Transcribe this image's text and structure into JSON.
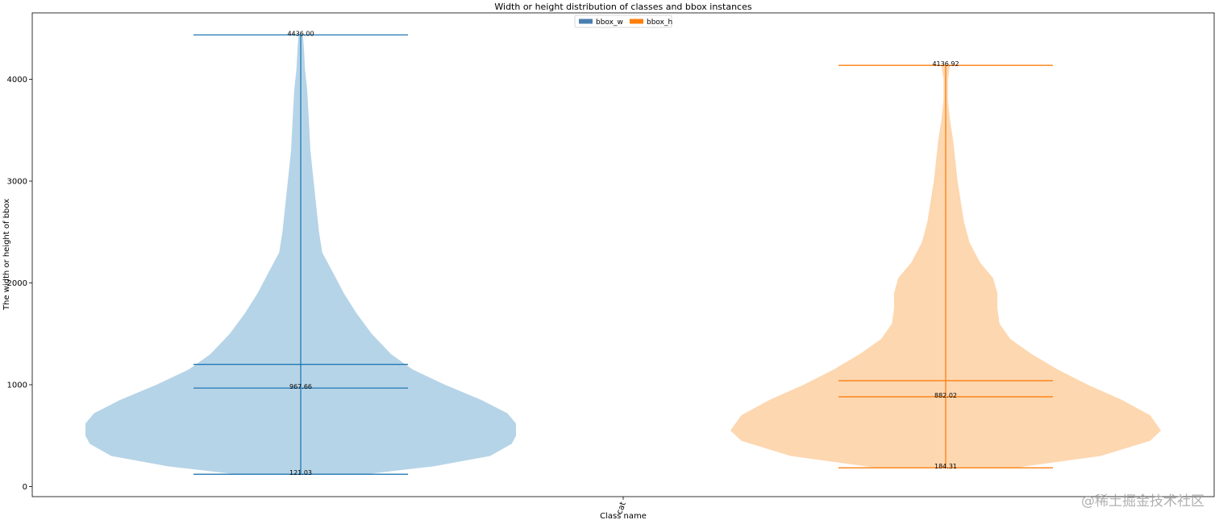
{
  "chart_data": {
    "type": "violin",
    "title": "Width or height distribution of classes and bbox instances",
    "xlabel": "Class name",
    "ylabel": "The width or height of bbox",
    "categories": [
      "cat"
    ],
    "ylim": [
      -100,
      4680
    ],
    "yticks": [
      0,
      1000,
      2000,
      3000,
      4000
    ],
    "grid": false,
    "legend_position": "top-center",
    "series": [
      {
        "name": "bbox_w",
        "color": "#1f77b4",
        "fill_color": "#a9cce3",
        "min": 121.03,
        "median": 967.66,
        "mean": 1200,
        "max": 4436.0,
        "min_label": "121.03",
        "median_label": "967.66",
        "max_label": "4436.00",
        "profile": [
          [
            121,
            0.3
          ],
          [
            200,
            0.62
          ],
          [
            300,
            0.88
          ],
          [
            420,
            0.98
          ],
          [
            500,
            1.0
          ],
          [
            620,
            1.0
          ],
          [
            720,
            0.96
          ],
          [
            850,
            0.84
          ],
          [
            1000,
            0.67
          ],
          [
            1150,
            0.52
          ],
          [
            1300,
            0.42
          ],
          [
            1500,
            0.33
          ],
          [
            1700,
            0.26
          ],
          [
            1900,
            0.2
          ],
          [
            2100,
            0.15
          ],
          [
            2300,
            0.1
          ],
          [
            2500,
            0.085
          ],
          [
            2700,
            0.075
          ],
          [
            3000,
            0.06
          ],
          [
            3300,
            0.045
          ],
          [
            3600,
            0.038
          ],
          [
            3900,
            0.03
          ],
          [
            4100,
            0.02
          ],
          [
            4300,
            0.015
          ],
          [
            4436,
            0.01
          ]
        ]
      },
      {
        "name": "bbox_h",
        "color": "#ff7f0e",
        "fill_color": "#fdd0a2",
        "min": 184.31,
        "median": 882.02,
        "mean": 1040,
        "max": 4136.92,
        "min_label": "184.31",
        "median_label": "882.02",
        "max_label": "4136.92",
        "profile": [
          [
            184,
            0.32
          ],
          [
            300,
            0.72
          ],
          [
            450,
            0.95
          ],
          [
            550,
            1.0
          ],
          [
            700,
            0.95
          ],
          [
            850,
            0.82
          ],
          [
            1000,
            0.66
          ],
          [
            1150,
            0.52
          ],
          [
            1300,
            0.4
          ],
          [
            1450,
            0.3
          ],
          [
            1600,
            0.25
          ],
          [
            1750,
            0.24
          ],
          [
            1900,
            0.24
          ],
          [
            2050,
            0.22
          ],
          [
            2200,
            0.16
          ],
          [
            2400,
            0.11
          ],
          [
            2600,
            0.085
          ],
          [
            2800,
            0.07
          ],
          [
            3000,
            0.055
          ],
          [
            3200,
            0.045
          ],
          [
            3400,
            0.035
          ],
          [
            3600,
            0.02
          ],
          [
            3800,
            0.01
          ],
          [
            4000,
            0.01
          ],
          [
            4137,
            0.02
          ]
        ]
      }
    ]
  },
  "watermark": "@稀土掘金技术社区"
}
